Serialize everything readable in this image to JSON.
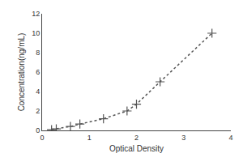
{
  "chart_data": {
    "type": "line",
    "xlabel": "Optical Density",
    "ylabel": "Concentration(ng/mL)",
    "x": [
      0.2,
      0.3,
      0.6,
      0.8,
      1.3,
      1.8,
      2.0,
      2.5,
      3.6
    ],
    "values": [
      0.08,
      0.15,
      0.4,
      0.65,
      1.2,
      2.0,
      2.7,
      5.0,
      10.0
    ],
    "xlim": [
      0,
      4
    ],
    "ylim": [
      0,
      12
    ],
    "xticks": [
      0,
      1,
      2,
      3,
      4
    ],
    "yticks": [
      0,
      2,
      4,
      6,
      8,
      10,
      12
    ],
    "color": "#555555",
    "marker": "plus",
    "line_style": "dotted",
    "grid": false
  }
}
